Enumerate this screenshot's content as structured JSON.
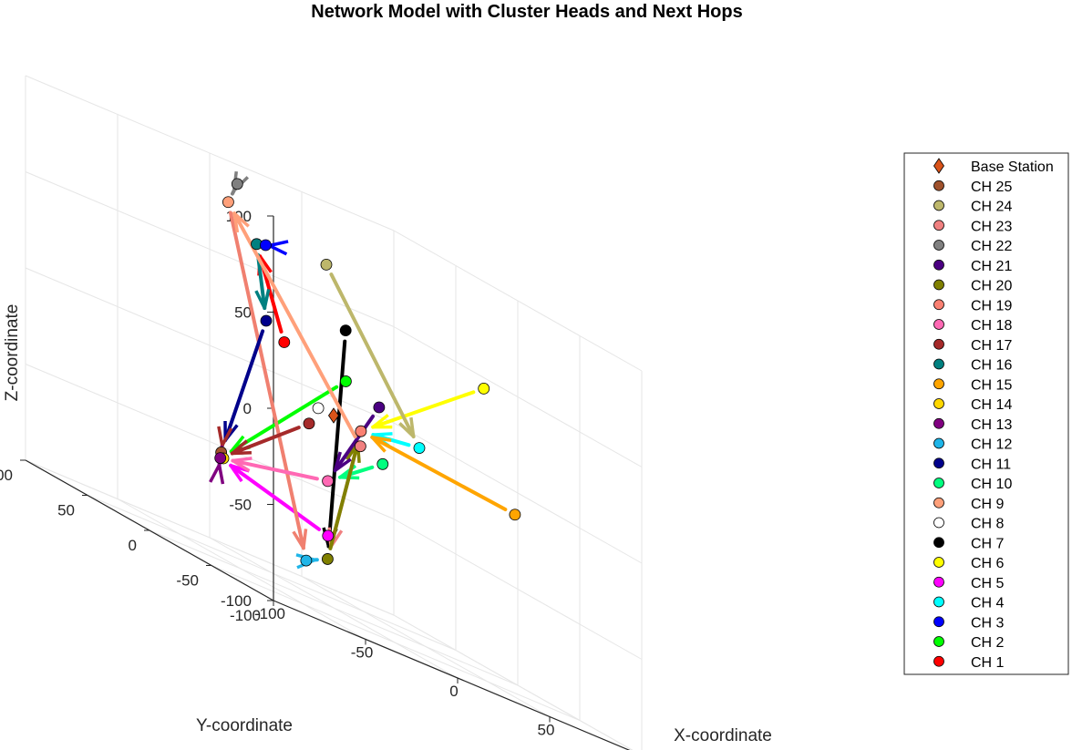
{
  "chart_data": {
    "type": "scatter3d",
    "title": "Network Model with Cluster Heads and Next Hops",
    "xlabel": "X-coordinate",
    "ylabel": "Y-coordinate",
    "zlabel": "Z-coordinate",
    "xlim": [
      -100,
      100
    ],
    "ylim": [
      -100,
      100
    ],
    "zlim": [
      -100,
      100
    ],
    "xticks": [
      -100,
      -50,
      0,
      50
    ],
    "yticks": [
      -100,
      -50,
      0,
      50,
      100
    ],
    "zticks": [
      -100,
      -50,
      0,
      50,
      100
    ],
    "grid": true,
    "legend_position": "outside-right",
    "base_station": {
      "name": "Base Station",
      "x": 0,
      "y": 0,
      "z": 0,
      "color": "#d95319",
      "marker": "diamond"
    },
    "cluster_heads": [
      {
        "name": "CH 25",
        "x": -88,
        "y": -40,
        "z": -40,
        "color": "#a0522d"
      },
      {
        "name": "CH 24",
        "x": 60,
        "y": 95,
        "z": 68,
        "color": "#bdb76b"
      },
      {
        "name": "CH 23",
        "x": 28,
        "y": 20,
        "z": -12,
        "color": "#f08080"
      },
      {
        "name": "CH 22",
        "x": 15,
        "y": 100,
        "z": 90,
        "color": "#808080"
      },
      {
        "name": "CH 21",
        "x": 55,
        "y": 45,
        "z": 10,
        "color": "#4b0082"
      },
      {
        "name": "CH 20",
        "x": -10,
        "y": -10,
        "z": -75,
        "color": "#808000"
      },
      {
        "name": "CH 19",
        "x": 35,
        "y": 30,
        "z": -5,
        "color": "#fa8072"
      },
      {
        "name": "CH 18",
        "x": -20,
        "y": -25,
        "z": -33,
        "color": "#ff69b4"
      },
      {
        "name": "CH 17",
        "x": -10,
        "y": 5,
        "z": -10,
        "color": "#a52a2a"
      },
      {
        "name": "CH 16",
        "x": -25,
        "y": 25,
        "z": 70,
        "color": "#008080"
      },
      {
        "name": "CH 15",
        "x": 85,
        "y": -20,
        "z": -10,
        "color": "#ffa500"
      },
      {
        "name": "CH 14",
        "x": -70,
        "y": -15,
        "z": -45,
        "color": "#ffd700"
      },
      {
        "name": "CH 13",
        "x": -75,
        "y": -20,
        "z": -45,
        "color": "#800080"
      },
      {
        "name": "CH 12",
        "x": -25,
        "y": -15,
        "z": -80,
        "color": "#1fb5e8"
      },
      {
        "name": "CH 11",
        "x": -40,
        "y": -5,
        "z": 35,
        "color": "#00008b"
      },
      {
        "name": "CH 10",
        "x": 30,
        "y": 5,
        "z": -15,
        "color": "#00ff7f"
      },
      {
        "name": "CH 9",
        "x": 0,
        "y": 85,
        "z": 80,
        "color": "#ffa07a"
      },
      {
        "name": "CH 8",
        "x": -5,
        "y": 5,
        "z": 0,
        "color": "#ffffff"
      },
      {
        "name": "CH 7",
        "x": 20,
        "y": 20,
        "z": 45,
        "color": "#000000"
      },
      {
        "name": "CH 6",
        "x": 95,
        "y": 20,
        "z": 45,
        "color": "#ffff00"
      },
      {
        "name": "CH 5",
        "x": -30,
        "y": -40,
        "z": -60,
        "color": "#ff00ff"
      },
      {
        "name": "CH 4",
        "x": 60,
        "y": 20,
        "z": 0,
        "color": "#00ffff"
      },
      {
        "name": "CH 3",
        "x": -10,
        "y": 40,
        "z": 70,
        "color": "#0000ff"
      },
      {
        "name": "CH 2",
        "x": 10,
        "y": 5,
        "z": 20,
        "color": "#00ff00"
      },
      {
        "name": "CH 1",
        "x": -10,
        "y": 25,
        "z": 25,
        "color": "#ff0000"
      }
    ],
    "next_hops": [
      {
        "from": "CH 1",
        "to": "CH 16",
        "color": "#ff0000"
      },
      {
        "from": "CH 2",
        "to": "CH 13",
        "color": "#00ff00"
      },
      {
        "from": "CH 3",
        "to": "CH 16",
        "color": "#0000ff"
      },
      {
        "from": "CH 4",
        "to": "CH 19",
        "color": "#00ffff"
      },
      {
        "from": "CH 5",
        "to": "CH 13",
        "color": "#ff00ff"
      },
      {
        "from": "CH 6",
        "to": "CH 19",
        "color": "#ffff00"
      },
      {
        "from": "CH 7",
        "to": "CH 20",
        "color": "#000000"
      },
      {
        "from": "CH 9",
        "to": "CH 12",
        "color": "#f08070"
      },
      {
        "from": "CH 10",
        "to": "CH 18",
        "color": "#00ff7f"
      },
      {
        "from": "CH 11",
        "to": "CH 25",
        "color": "#00008b"
      },
      {
        "from": "CH 12",
        "to": "CH 20",
        "color": "#1fb5e8"
      },
      {
        "from": "CH 15",
        "to": "CH 19",
        "color": "#ffa500"
      },
      {
        "from": "CH 16",
        "to": "CH 11",
        "color": "#008080"
      },
      {
        "from": "CH 17",
        "to": "CH 13",
        "color": "#a52a2a"
      },
      {
        "from": "CH 18",
        "to": "CH 13",
        "color": "#ff69b4"
      },
      {
        "from": "CH 19",
        "to": "CH 20",
        "color": "#f08080"
      },
      {
        "from": "CH 20",
        "to": "CH 19",
        "color": "#808000"
      },
      {
        "from": "CH 21",
        "to": "CH 18",
        "color": "#4b0082"
      },
      {
        "from": "CH 22",
        "to": "CH 9",
        "color": "#808080"
      },
      {
        "from": "CH 23",
        "to": "CH 9",
        "color": "#ffa07a"
      },
      {
        "from": "CH 24",
        "to": "CH 4",
        "color": "#bdb76b"
      },
      {
        "from": "CH 25",
        "to": "CH 13",
        "color": "#a52a2a"
      },
      {
        "from": "CH 13",
        "to": "CH 25",
        "color": "#800080"
      }
    ]
  }
}
